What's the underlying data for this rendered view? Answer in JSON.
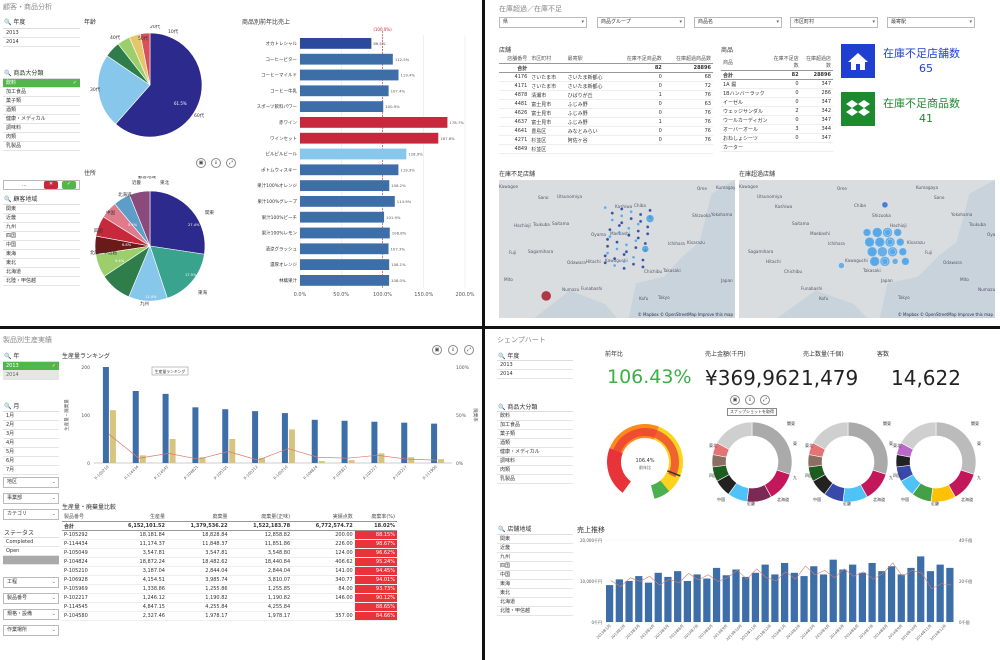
{
  "q1": {
    "title": "顧客・商品分析",
    "year_filter_label": "年度",
    "years": [
      "2013",
      "2014"
    ],
    "category_filter_label": "商品大分類",
    "categories": [
      {
        "t": "飲料",
        "sel": true
      },
      {
        "t": "加工食品"
      },
      {
        "t": "菓子類"
      },
      {
        "t": "酒類"
      },
      {
        "t": "健康・メディカル"
      },
      {
        "t": "調味料"
      },
      {
        "t": "肉類"
      },
      {
        "t": "乳製品"
      }
    ],
    "search_btns": {
      "dots": "...",
      "cancel": "✕",
      "ok": "✓"
    },
    "region_filter_label": "顧客地域",
    "regions": [
      "関東",
      "近畿",
      "九州",
      "四国",
      "中国",
      "東海",
      "東北",
      "北海道",
      "北陸・甲信越"
    ],
    "pie1_title": "年齢",
    "pie1_labels": [
      "60代",
      "30代",
      "40代",
      "50代",
      "20代",
      "10代"
    ],
    "pie1_pcts": [
      "61.5",
      "",
      "",
      "",
      "",
      ""
    ],
    "pie2_title": "住所",
    "pie2_labels": [
      "関東",
      "東海",
      "九州",
      "北陸・甲信越",
      "四国",
      "中国",
      "北海道",
      "近畿",
      "東北",
      "顧客地域"
    ],
    "pie2_pcts": [
      "27.4%",
      "17.5%",
      "11.4%",
      "9.4%",
      "6.8%",
      "5.4%"
    ],
    "bar_title": "商品別前年比売上",
    "bar_ref_label": "(100.0%)",
    "bar_items": [
      {
        "name": "オカトレシャル",
        "v": 86.5,
        "lab": "86.5%"
      },
      {
        "name": "コーヒービター",
        "v": 112.5,
        "lab": "112.5%"
      },
      {
        "name": "コーヒーマイルド",
        "v": 119.4,
        "lab": "119.4%"
      },
      {
        "name": "コーヒー牛乳",
        "v": 107.4,
        "lab": "107.4%"
      },
      {
        "name": "スポーツ飲料パワー",
        "v": 100.9,
        "lab": "100.9%"
      },
      {
        "name": "赤ワイン",
        "v": 178.7,
        "lab": "178.7%"
      },
      {
        "name": "ワインセット",
        "v": 167.6,
        "lab": "167.6%"
      },
      {
        "name": "ピルピルビール",
        "v": 128.9,
        "lab": "128.9%"
      },
      {
        "name": "ポトムウィスキー",
        "v": 119.3,
        "lab": "119.3%"
      },
      {
        "name": "果汁100%オレンジ",
        "v": 108.2,
        "lab": "108.2%"
      },
      {
        "name": "果汁100%グレープ",
        "v": 114.9,
        "lab": "114.9%"
      },
      {
        "name": "果汁100%ピーチ",
        "v": 101.9,
        "lab": "101.9%"
      },
      {
        "name": "果汁100%レモン",
        "v": 108.8,
        "lab": "108.8%"
      },
      {
        "name": "清涼グラッシュ",
        "v": 107.3,
        "lab": "107.3%"
      },
      {
        "name": "濃厚オレンジ",
        "v": 108.1,
        "lab": "108.1%"
      },
      {
        "name": "林檎果汁",
        "v": 108.0,
        "lab": "108.0%"
      }
    ],
    "bar_axis": [
      "0.0%",
      "50.0%",
      "100.0%",
      "150.0%",
      "200.0%"
    ]
  },
  "q2": {
    "title": "在庫超過／在庫不足",
    "dropdowns": [
      "県",
      "商品グループ",
      "商品名",
      "市区町村",
      "最寄駅"
    ],
    "tbl1_title": "店舗",
    "tbl1_headers": [
      "店舗番号",
      "市区町村",
      "最寄駅",
      "在庫不足商品数",
      "在庫超過商品数"
    ],
    "tbl1_total": [
      "合計",
      "",
      "",
      "82",
      "28896"
    ],
    "tbl1_rows": [
      [
        "4176",
        "さいたま市",
        "さいたま新都心",
        "0",
        "68"
      ],
      [
        "4171",
        "さいたま市",
        "さいたま新都心",
        "0",
        "72"
      ],
      [
        "4878",
        "清瀬市",
        "ひばりが丘",
        "1",
        "76"
      ],
      [
        "4481",
        "富士見市",
        "ふじみ野",
        "0",
        "63"
      ],
      [
        "4626",
        "富士見市",
        "ふじみ野",
        "0",
        "76"
      ],
      [
        "4637",
        "富士見市",
        "ふじみ野",
        "1",
        "76"
      ],
      [
        "4641",
        "豊島区",
        "みなとみらい",
        "0",
        "76"
      ],
      [
        "4271",
        "杉並区",
        "阿佐ヶ谷",
        "0",
        "76"
      ],
      [
        "4849",
        "杉並区",
        "",
        "",
        ""
      ]
    ],
    "tbl2_title": "商品",
    "tbl2_headers": [
      "商品",
      "在庫不足店数",
      "在庫超過店数"
    ],
    "tbl2_total": [
      "合計",
      "82",
      "28896"
    ],
    "tbl2_rows": [
      [
        "1A 醤",
        "0",
        "347"
      ],
      [
        "1Bハンバーラック",
        "0",
        "286"
      ],
      [
        "イーゼル",
        "0",
        "347"
      ],
      [
        "ウェッジサンダル",
        "2",
        "342"
      ],
      [
        "ウールカーディガン",
        "0",
        "347"
      ],
      [
        "オーバーオール",
        "3",
        "344"
      ],
      [
        "おねしょシーツ",
        "0",
        "347"
      ],
      [
        "カーター",
        "",
        ""
      ]
    ],
    "kpi1_label": "在庫不足店舗数",
    "kpi1_value": "65",
    "kpi2_label": "在庫不足商品数",
    "kpi2_value": "41",
    "map1_title": "在庫不足店舗",
    "map2_title": "在庫超過店舗",
    "map_attr": "© Mapbox © OpenStreetMap Improve this map",
    "map_cities": [
      "Kawagoe",
      "Saitama",
      "Kawaguchi",
      "Tokyo",
      "Yokohama",
      "Sagamihara",
      "Funabashi",
      "Chiba",
      "Kisarazu",
      "Mito",
      "Utsunomiya",
      "Maebashi",
      "Takasaki",
      "Kumagaya",
      "Tsukuba",
      "Hitachi",
      "Kofu",
      "Shizuoka",
      "Fuji",
      "Numazu",
      "Kashiwa",
      "Ichihara",
      "Japan",
      "Sano",
      "Oyama",
      "Chichibu",
      "Ome",
      "Hachioji",
      "Odawara"
    ]
  },
  "q3": {
    "title": "製品別生産実績",
    "year_label": "年",
    "years": [
      {
        "t": "2013",
        "sel": true
      },
      {
        "t": "2014",
        "gray": true
      }
    ],
    "month_label": "月",
    "months": [
      "1月",
      "2月",
      "3月",
      "4月",
      "5月",
      "6月",
      "7月"
    ],
    "filters": [
      "地区",
      "事業部",
      "カテゴリ"
    ],
    "status_label": "ステータス",
    "status_items": [
      {
        "t": "Completed"
      },
      {
        "t": "Open"
      }
    ],
    "filters2": [
      "工程",
      "製品番号",
      "規格・設備",
      "作業場所"
    ],
    "chart_title": "生産量ランキング",
    "chart_tooltip": "生産量ランキング",
    "ylabel_left": "生産量・廃棄量",
    "ylabel_right": "廃棄率",
    "y_left_ticks": [
      "200",
      "100",
      "0"
    ],
    "y_right_ticks": [
      "100%",
      "50%",
      "0%"
    ],
    "x_labels": [
      "P-105210",
      "P-114434",
      "P-114542",
      "P-104821",
      "P-105101",
      "P-105212",
      "P-105210",
      "P-104824",
      "P-102817",
      "P-102217",
      "P-102217",
      "P-111900"
    ],
    "tbl_title": "生産量・廃棄量比較",
    "tbl_headers": [
      "製品番号",
      "生産量",
      "廃棄量",
      "廃棄量(正味)",
      "実績点数",
      "廃棄率(%)"
    ],
    "tbl_total": [
      "合計",
      "6,152,101.52",
      "1,379,536.22",
      "1,522,183.78",
      "6,772,574.72",
      "18.02%"
    ],
    "tbl_rows": [
      [
        "P-105292",
        "18,181.84",
        "18,828.84",
        "12,858.82",
        "200.00",
        "88.15%"
      ],
      [
        "P-114434",
        "11,174.37",
        "11,848.37",
        "11,851.86",
        "226.00",
        "98.67%"
      ],
      [
        "P-105049",
        "3,547.81",
        "3,547.81",
        "3,548.80",
        "124.00",
        "96.62%"
      ],
      [
        "P-104824",
        "18,872.24",
        "18,482.62",
        "18,440.84",
        "406.62",
        "95.24%"
      ],
      [
        "P-105210",
        "3,187.04",
        "2,844.04",
        "2,844.04",
        "141.00",
        "94.45%"
      ],
      [
        "P-106928",
        "4,154.51",
        "3,985.74",
        "3,810.07",
        "340.77",
        "94.01%"
      ],
      [
        "P-105969",
        "1,338.86",
        "1,255.86",
        "1,255.85",
        "84.00",
        "93.73%"
      ],
      [
        "P-102217",
        "1,246.12",
        "1,190.82",
        "1,190.82",
        "146.00",
        "90.12%"
      ],
      [
        "P-114545",
        "4,847.15",
        "4,255.84",
        "4,255.84",
        "",
        "88.65%"
      ],
      [
        "P-104580",
        "2,327.46",
        "1,978.17",
        "1,978.17",
        "357.00",
        "84.66%"
      ]
    ]
  },
  "q4": {
    "title": "シェンプハート",
    "year_label": "年度",
    "years": [
      "2013",
      "2014"
    ],
    "cat_label": "商品大分類",
    "cats": [
      "飲料",
      "加工食品",
      "菓子類",
      "酒類",
      "健康・メディカル",
      "調味料",
      "肉類",
      "乳製品"
    ],
    "store_label": "店舗地域",
    "stores": [
      "関東",
      "近畿",
      "九州",
      "四国",
      "中国",
      "東海",
      "東北",
      "北海道",
      "北陸・甲信越"
    ],
    "k1_label": "前年比",
    "k1_value": "106.43%",
    "k2_label": "売上金額(千円)",
    "k2_value": "¥369,962",
    "k3_label": "売上数量(千個)",
    "k3_value": "1,479",
    "k4_label": "客数",
    "k4_value": "14,622",
    "gauge_label": "前年比",
    "gauge_value": "106.4%",
    "tooltip": "スナップショットを取得",
    "trend_title": "売上推移",
    "trend_y_left": [
      "20,000千円",
      "10,000千円",
      "0千円"
    ],
    "trend_y_right": [
      "40千個",
      "20千個",
      "0千個"
    ],
    "trend_values": [
      0.45,
      0.52,
      0.5,
      0.56,
      0.48,
      0.6,
      0.55,
      0.62,
      0.5,
      0.58,
      0.53,
      0.66,
      0.57,
      0.64,
      0.55,
      0.6,
      0.7,
      0.58,
      0.72,
      0.6,
      0.56,
      0.68,
      0.58,
      0.76,
      0.64,
      0.7,
      0.6,
      0.72,
      0.62,
      0.68,
      0.58,
      0.66,
      0.8,
      0.62,
      0.7,
      0.66
    ],
    "trend_x": [
      "2013年1月",
      "2013年2月",
      "2013年3月",
      "2013年4月",
      "2013年5月",
      "2013年6月",
      "2013年7月",
      "2013年8月",
      "2013年9月",
      "2013年10月",
      "2013年11月",
      "2013年12月",
      "2014年1月",
      "2014年2月",
      "2014年3月",
      "2014年4月",
      "2014年5月",
      "2014年6月",
      "2014年7月",
      "2014年8月",
      "2014年9月",
      "2014年10月",
      "2014年11月",
      "2014年12月"
    ],
    "donut_labels": [
      "関東",
      "東海",
      "九州",
      "北海道",
      "近畿",
      "中国",
      "四国",
      "東北"
    ]
  },
  "colors": {
    "green": "#52b74a",
    "red": "#c8283b",
    "navy": "#2c2a8c",
    "blue": "#3d6ea8",
    "kpi_blue": "#1f3fd1",
    "kpi_green": "#1e8a2f"
  }
}
